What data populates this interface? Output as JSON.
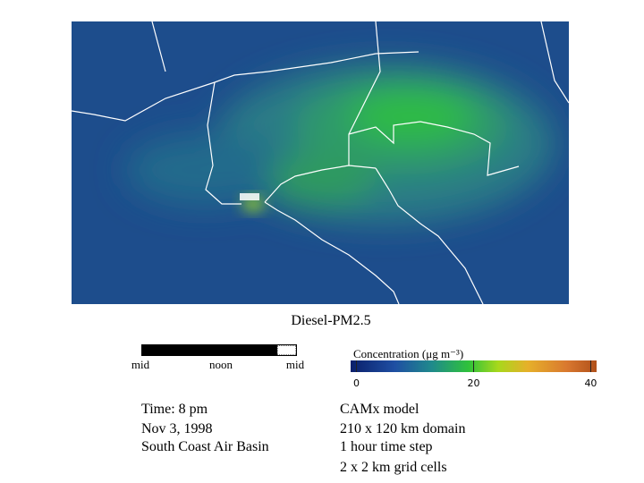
{
  "title": "Diesel-PM2.5",
  "timeline": {
    "labels": [
      "mid",
      "noon",
      "mid"
    ]
  },
  "colorbar": {
    "label": "Concentration (μg m⁻³)",
    "lim": [
      -1,
      41
    ],
    "ticks": [
      0,
      20,
      40
    ]
  },
  "info": {
    "left": [
      "Time: 8 pm",
      "Nov 3, 1998",
      "South Coast Air Basin"
    ],
    "right": [
      "CAMx model",
      "210 x 120 km domain",
      "1 hour time step",
      "2 x 2 km grid cells"
    ]
  }
}
